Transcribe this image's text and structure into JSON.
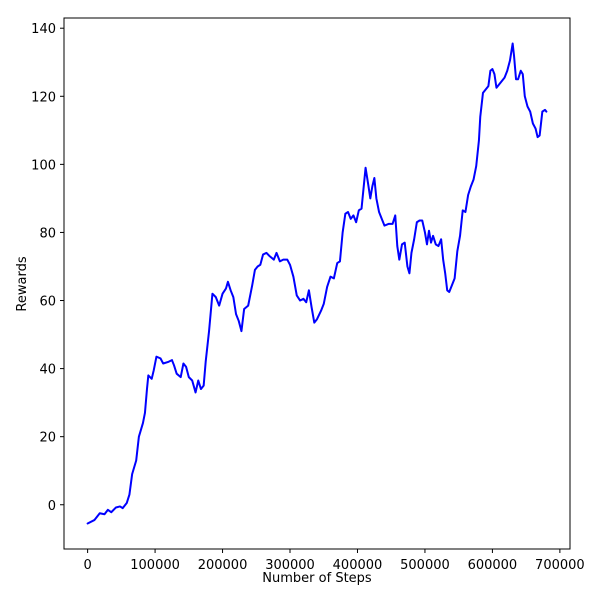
{
  "chart_data": {
    "type": "line",
    "title": "",
    "xlabel": "Number of Steps",
    "ylabel": "Rewards",
    "xlim": [
      -35000,
      715000
    ],
    "ylim": [
      -13,
      143
    ],
    "xticks": [
      0,
      100000,
      200000,
      300000,
      400000,
      500000,
      600000,
      700000
    ],
    "xtick_labels": [
      "0",
      "100000",
      "200000",
      "300000",
      "400000",
      "500000",
      "600000",
      "700000"
    ],
    "yticks": [
      0,
      20,
      40,
      60,
      80,
      100,
      120,
      140
    ],
    "ytick_labels": [
      "0",
      "20",
      "40",
      "60",
      "80",
      "100",
      "120",
      "140"
    ],
    "grid": false,
    "series": [
      {
        "color": "#0000ff",
        "points": [
          [
            0,
            -5.5
          ],
          [
            10000,
            -4.5
          ],
          [
            18000,
            -2.5
          ],
          [
            25000,
            -2.8
          ],
          [
            30000,
            -1.5
          ],
          [
            35000,
            -2.2
          ],
          [
            42000,
            -0.8
          ],
          [
            48000,
            -0.5
          ],
          [
            52000,
            -1.0
          ],
          [
            58000,
            0.5
          ],
          [
            62000,
            3.0
          ],
          [
            66000,
            9.0
          ],
          [
            72000,
            13.0
          ],
          [
            76000,
            20.0
          ],
          [
            82000,
            24.0
          ],
          [
            85000,
            27.0
          ],
          [
            88000,
            34.0
          ],
          [
            90000,
            38.0
          ],
          [
            95000,
            37.0
          ],
          [
            98000,
            39.5
          ],
          [
            102000,
            43.5
          ],
          [
            108000,
            43.0
          ],
          [
            112000,
            41.5
          ],
          [
            120000,
            42.0
          ],
          [
            125000,
            42.5
          ],
          [
            128000,
            41.0
          ],
          [
            132000,
            38.5
          ],
          [
            138000,
            37.5
          ],
          [
            142000,
            41.5
          ],
          [
            146000,
            40.5
          ],
          [
            150000,
            37.5
          ],
          [
            155000,
            36.5
          ],
          [
            160000,
            33.0
          ],
          [
            164000,
            36.5
          ],
          [
            168000,
            34.0
          ],
          [
            172000,
            35.0
          ],
          [
            175000,
            42.0
          ],
          [
            180000,
            51.0
          ],
          [
            185000,
            62.0
          ],
          [
            190000,
            61.0
          ],
          [
            195000,
            58.5
          ],
          [
            200000,
            62.0
          ],
          [
            205000,
            63.5
          ],
          [
            208000,
            65.5
          ],
          [
            212000,
            63.0
          ],
          [
            216000,
            61.0
          ],
          [
            220000,
            56.0
          ],
          [
            224000,
            54.0
          ],
          [
            228000,
            51.0
          ],
          [
            232000,
            57.5
          ],
          [
            238000,
            58.5
          ],
          [
            244000,
            64.5
          ],
          [
            248000,
            69.0
          ],
          [
            252000,
            70.0
          ],
          [
            256000,
            70.5
          ],
          [
            260000,
            73.5
          ],
          [
            265000,
            74.0
          ],
          [
            270000,
            73.0
          ],
          [
            276000,
            72.0
          ],
          [
            280000,
            74.0
          ],
          [
            285000,
            71.5
          ],
          [
            290000,
            72.0
          ],
          [
            296000,
            72.0
          ],
          [
            300000,
            70.5
          ],
          [
            305000,
            67.0
          ],
          [
            310000,
            61.5
          ],
          [
            315000,
            60.0
          ],
          [
            320000,
            60.5
          ],
          [
            324000,
            59.5
          ],
          [
            328000,
            63.0
          ],
          [
            332000,
            58.0
          ],
          [
            336000,
            53.5
          ],
          [
            340000,
            54.5
          ],
          [
            346000,
            57.0
          ],
          [
            350000,
            59.0
          ],
          [
            355000,
            64.0
          ],
          [
            360000,
            67.0
          ],
          [
            365000,
            66.5
          ],
          [
            370000,
            71.0
          ],
          [
            374000,
            71.5
          ],
          [
            378000,
            80.0
          ],
          [
            382000,
            85.5
          ],
          [
            386000,
            86.0
          ],
          [
            390000,
            84.0
          ],
          [
            394000,
            85.0
          ],
          [
            398000,
            83.0
          ],
          [
            402000,
            86.5
          ],
          [
            406000,
            87.0
          ],
          [
            410000,
            95.0
          ],
          [
            412000,
            99.0
          ],
          [
            416000,
            94.0
          ],
          [
            419000,
            90.0
          ],
          [
            422000,
            93.5
          ],
          [
            425000,
            96.0
          ],
          [
            428000,
            90.0
          ],
          [
            432000,
            86.0
          ],
          [
            436000,
            84.0
          ],
          [
            440000,
            82.0
          ],
          [
            446000,
            82.5
          ],
          [
            452000,
            82.5
          ],
          [
            456000,
            85.0
          ],
          [
            459000,
            76.0
          ],
          [
            462000,
            72.0
          ],
          [
            466000,
            76.5
          ],
          [
            470000,
            77.0
          ],
          [
            474000,
            70.0
          ],
          [
            477000,
            68.0
          ],
          [
            480000,
            74.0
          ],
          [
            484000,
            78.0
          ],
          [
            488000,
            83.0
          ],
          [
            492000,
            83.5
          ],
          [
            496000,
            83.5
          ],
          [
            500000,
            80.0
          ],
          [
            503000,
            76.5
          ],
          [
            506000,
            80.5
          ],
          [
            509000,
            77.0
          ],
          [
            512000,
            79.0
          ],
          [
            516000,
            76.5
          ],
          [
            520000,
            76.0
          ],
          [
            524000,
            78.0
          ],
          [
            527000,
            72.0
          ],
          [
            530000,
            68.0
          ],
          [
            533000,
            63.0
          ],
          [
            536000,
            62.5
          ],
          [
            540000,
            64.5
          ],
          [
            544000,
            66.5
          ],
          [
            548000,
            74.5
          ],
          [
            552000,
            79.0
          ],
          [
            556000,
            86.5
          ],
          [
            560000,
            86.0
          ],
          [
            564000,
            91.0
          ],
          [
            568000,
            93.5
          ],
          [
            572000,
            95.5
          ],
          [
            576000,
            99.5
          ],
          [
            580000,
            107.0
          ],
          [
            582000,
            114.0
          ],
          [
            586000,
            121.0
          ],
          [
            590000,
            122.0
          ],
          [
            594000,
            123.0
          ],
          [
            597000,
            127.5
          ],
          [
            600000,
            128.0
          ],
          [
            603000,
            126.5
          ],
          [
            606000,
            122.5
          ],
          [
            610000,
            123.5
          ],
          [
            614000,
            124.5
          ],
          [
            618000,
            125.5
          ],
          [
            622000,
            127.5
          ],
          [
            626000,
            130.5
          ],
          [
            630000,
            135.5
          ],
          [
            632000,
            132.0
          ],
          [
            635000,
            125.0
          ],
          [
            638000,
            125.0
          ],
          [
            642000,
            127.5
          ],
          [
            645000,
            126.5
          ],
          [
            648000,
            120.0
          ],
          [
            652000,
            117.0
          ],
          [
            656000,
            115.5
          ],
          [
            660000,
            112.0
          ],
          [
            664000,
            110.5
          ],
          [
            667000,
            108.0
          ],
          [
            670000,
            108.5
          ],
          [
            674000,
            115.5
          ],
          [
            678000,
            116.0
          ],
          [
            680000,
            115.5
          ]
        ]
      }
    ]
  }
}
